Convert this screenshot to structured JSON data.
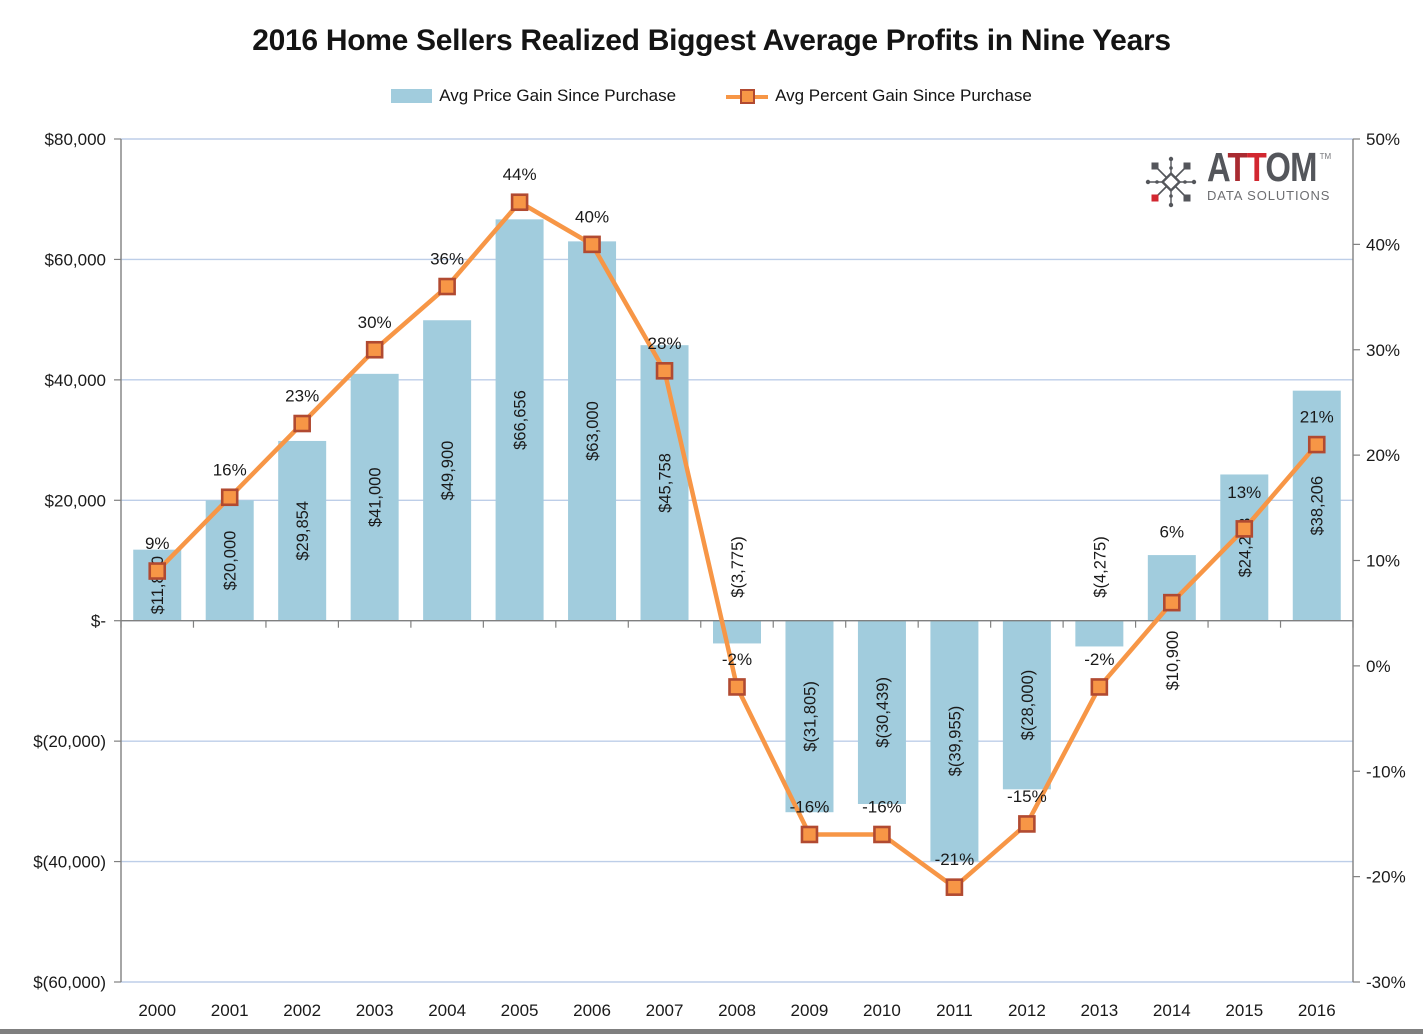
{
  "title": "2016 Home Sellers Realized Biggest Average Profits in Nine Years",
  "legend": {
    "bar_label": "Avg Price Gain Since Purchase",
    "line_label": "Avg Percent Gain Since Purchase"
  },
  "logo": {
    "name": "ATTOM",
    "tm": "TM",
    "sub": "DATA SOLUTIONS",
    "letter_colors": [
      "#54565B",
      "#A92B31",
      "#D22730",
      "#54565B",
      "#54565B"
    ],
    "icon_color": "#54565B",
    "accent_color": "#D22730"
  },
  "chart_data": {
    "type": "bar+line",
    "title": "2016 Home Sellers Realized Biggest Average Profits in Nine Years",
    "categories": [
      "2000",
      "2001",
      "2002",
      "2003",
      "2004",
      "2005",
      "2006",
      "2007",
      "2008",
      "2009",
      "2010",
      "2011",
      "2012",
      "2013",
      "2014",
      "2015",
      "2016"
    ],
    "series": [
      {
        "name": "Avg Price Gain Since Purchase",
        "type": "bar",
        "axis": "left",
        "color": "#A1CCDD",
        "values": [
          11800,
          20000,
          29854,
          41000,
          49900,
          66656,
          63000,
          45758,
          -3775,
          -31805,
          -30439,
          -39955,
          -28000,
          -4275,
          10900,
          24288,
          38206
        ],
        "labels": [
          "$11,800",
          "$20,000",
          "$29,854",
          "$41,000",
          "$49,900",
          "$66,656",
          "$63,000",
          "$45,758",
          "$(3,775)",
          "$(31,805)",
          "$(30,439)",
          "$(39,955)",
          "$(28,000)",
          "$(4,275)",
          "$10,900",
          "$24,288",
          "$38,206"
        ]
      },
      {
        "name": "Avg Percent Gain Since Purchase",
        "type": "line",
        "axis": "right",
        "color": "#F79646",
        "marker": "square",
        "marker_stroke": "#B14A31",
        "values": [
          9,
          16,
          23,
          30,
          36,
          44,
          40,
          28,
          -2,
          -16,
          -16,
          -21,
          -15,
          -2,
          6,
          13,
          21
        ],
        "labels": [
          "9%",
          "16%",
          "23%",
          "30%",
          "36%",
          "44%",
          "40%",
          "28%",
          "-2%",
          "-16%",
          "-16%",
          "-21%",
          "-15%",
          "-2%",
          "6%",
          "13%",
          "21%"
        ]
      }
    ],
    "left_axis": {
      "min": -60000,
      "max": 80000,
      "step": 20000,
      "ticks": [
        "$80,000",
        "$60,000",
        "$40,000",
        "$20,000",
        "$-",
        "$(20,000)",
        "$(40,000)",
        "$(60,000)"
      ]
    },
    "right_axis": {
      "min": -30,
      "max": 50,
      "step": 10,
      "ticks": [
        "50%",
        "40%",
        "30%",
        "20%",
        "10%",
        "0%",
        "-10%",
        "-20%",
        "-30%"
      ]
    },
    "grid": true,
    "grid_color": "#BDCEE8",
    "axis_color": "#808080",
    "text_color": "#1a1a1a",
    "legend_position": "top"
  }
}
